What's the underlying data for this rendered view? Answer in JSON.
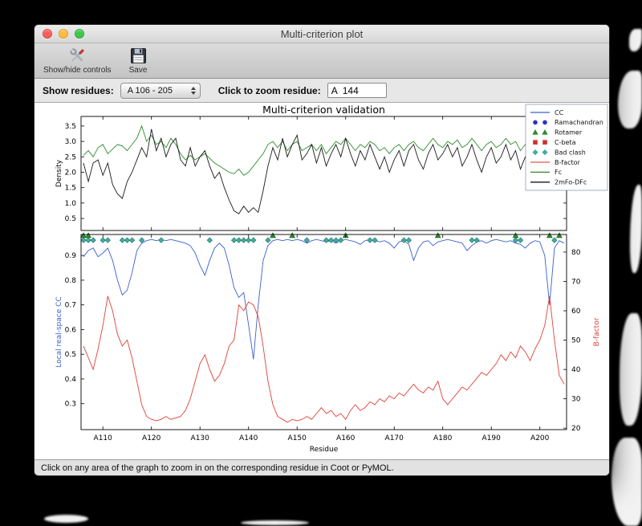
{
  "window": {
    "title": "Multi-criterion plot"
  },
  "toolbar": {
    "show_hide_label": "Show/hide controls",
    "save_label": "Save"
  },
  "controls": {
    "show_residues_label": "Show residues:",
    "residue_range_value": "A 106 - 205",
    "zoom_residue_label": "Click to zoom residue:",
    "zoom_residue_value": "A  144"
  },
  "status": {
    "text": "Click on any area of the graph to zoom in on the corresponding residue in Coot or PyMOL."
  },
  "legend": {
    "entries": [
      {
        "label": "CC",
        "swatch": "line",
        "color": "#3a5fd0"
      },
      {
        "label": "Ramachandran",
        "swatch": "circles",
        "color": "#2633cc"
      },
      {
        "label": "Rotamer",
        "swatch": "triangles",
        "color": "#2e8b2e"
      },
      {
        "label": "C-beta",
        "swatch": "squares",
        "color": "#cc3333"
      },
      {
        "label": "Bad clash",
        "swatch": "diamonds",
        "color": "#3fae9f"
      },
      {
        "label": "B-factor",
        "swatch": "line",
        "color": "#e4574b"
      },
      {
        "label": "Fc",
        "swatch": "line",
        "color": "#2e8b2e"
      },
      {
        "label": "2mFo-DFc",
        "swatch": "line",
        "color": "#1a1a1a"
      }
    ]
  },
  "chart_data": [
    {
      "type": "line",
      "title": "Multi-criterion validation",
      "ylabel": "Density",
      "ylim": [
        0.11,
        3.81
      ],
      "yticks": [
        0.5,
        1.0,
        1.5,
        2.0,
        2.5,
        3.0,
        3.5
      ],
      "x_start": 106,
      "series": [
        {
          "name": "Fc",
          "color": "#2e8b2e",
          "values": [
            2.55,
            2.7,
            2.5,
            2.8,
            2.9,
            2.6,
            2.75,
            2.9,
            2.85,
            2.7,
            2.9,
            3.1,
            3.5,
            3.0,
            3.2,
            2.9,
            3.0,
            2.8,
            3.1,
            2.9,
            2.6,
            2.4,
            2.55,
            2.4,
            2.5,
            2.6,
            2.45,
            2.3,
            2.2,
            2.1,
            2.0,
            1.95,
            2.1,
            1.9,
            2.0,
            2.2,
            2.4,
            2.6,
            2.9,
            3.0,
            2.8,
            3.0,
            2.7,
            2.9,
            3.0,
            2.7,
            2.8,
            2.9,
            2.7,
            2.9,
            2.6,
            2.8,
            3.0,
            2.9,
            3.1,
            2.9,
            2.7,
            2.9,
            2.8,
            3.0,
            2.9,
            2.7,
            2.8,
            2.6,
            2.8,
            2.9,
            2.7,
            2.9,
            3.0,
            2.8,
            2.7,
            2.9,
            3.1,
            2.9,
            2.8,
            3.0,
            2.9,
            3.05,
            2.8,
            2.9,
            3.1,
            2.9,
            2.7,
            2.9,
            3.0,
            2.8,
            2.9,
            3.1,
            2.9,
            3.0,
            2.7,
            2.9,
            2.6,
            2.8,
            2.9,
            2.7,
            2.8,
            3.0,
            2.5,
            2.6
          ]
        },
        {
          "name": "2mFo-DFc",
          "color": "#1a1a1a",
          "values": [
            2.3,
            1.7,
            2.3,
            2.4,
            1.9,
            2.3,
            1.6,
            1.3,
            1.15,
            1.7,
            2.0,
            2.4,
            2.8,
            2.5,
            3.4,
            2.7,
            3.1,
            2.5,
            2.9,
            3.1,
            2.4,
            2.2,
            2.8,
            2.2,
            2.5,
            2.7,
            2.2,
            1.8,
            2.0,
            1.5,
            1.1,
            0.75,
            0.65,
            0.9,
            0.7,
            0.85,
            0.7,
            1.4,
            2.2,
            2.8,
            2.4,
            3.1,
            2.5,
            2.9,
            3.2,
            2.4,
            2.6,
            2.9,
            2.3,
            2.8,
            2.2,
            2.6,
            2.9,
            2.5,
            3.1,
            2.6,
            2.2,
            2.7,
            2.4,
            2.9,
            2.5,
            2.1,
            2.5,
            2.0,
            2.4,
            2.7,
            2.2,
            2.7,
            2.9,
            2.4,
            2.1,
            2.6,
            2.9,
            2.4,
            2.6,
            2.9,
            2.5,
            2.8,
            2.2,
            2.5,
            2.9,
            2.4,
            2.0,
            2.5,
            2.8,
            2.3,
            2.5,
            2.9,
            2.4,
            2.7,
            2.1,
            2.5,
            1.9,
            2.3,
            2.6,
            2.1,
            2.4,
            2.8,
            1.9,
            2.2
          ]
        }
      ]
    },
    {
      "type": "line",
      "xlabel": "Residue",
      "xlim": [
        105.5,
        205.5
      ],
      "xticks": [
        110,
        120,
        130,
        140,
        150,
        160,
        170,
        180,
        190,
        200
      ],
      "xtick_labels": [
        "A110",
        "A120",
        "A130",
        "A140",
        "A150",
        "A160",
        "A170",
        "A180",
        "A190",
        "A200"
      ],
      "x_start": 106,
      "ylabel_left": "Local real-space CC",
      "ylim_left": [
        0.195,
        0.985
      ],
      "yticks_left": [
        0.3,
        0.4,
        0.5,
        0.6,
        0.7,
        0.8,
        0.9
      ],
      "ylabel_right": "B-factor",
      "ylim_right": [
        19.5,
        86.0
      ],
      "yticks_right": [
        20,
        30,
        40,
        50,
        60,
        70,
        80
      ],
      "series": [
        {
          "name": "CC",
          "axis": "left",
          "color": "#3a5fd0",
          "values": [
            0.895,
            0.92,
            0.93,
            0.895,
            0.91,
            0.93,
            0.88,
            0.8,
            0.74,
            0.76,
            0.83,
            0.92,
            0.95,
            0.96,
            0.965,
            0.96,
            0.965,
            0.96,
            0.965,
            0.96,
            0.955,
            0.95,
            0.94,
            0.91,
            0.86,
            0.82,
            0.88,
            0.93,
            0.95,
            0.93,
            0.86,
            0.77,
            0.73,
            0.75,
            0.62,
            0.48,
            0.7,
            0.88,
            0.94,
            0.96,
            0.965,
            0.96,
            0.965,
            0.96,
            0.965,
            0.96,
            0.95,
            0.96,
            0.965,
            0.96,
            0.955,
            0.96,
            0.95,
            0.96,
            0.965,
            0.96,
            0.955,
            0.945,
            0.96,
            0.965,
            0.96,
            0.955,
            0.96,
            0.95,
            0.93,
            0.955,
            0.96,
            0.945,
            0.88,
            0.93,
            0.955,
            0.96,
            0.94,
            0.955,
            0.96,
            0.965,
            0.96,
            0.955,
            0.95,
            0.92,
            0.94,
            0.955,
            0.96,
            0.95,
            0.96,
            0.965,
            0.96,
            0.955,
            0.96,
            0.95,
            0.945,
            0.93,
            0.95,
            0.96,
            0.955,
            0.9,
            0.7,
            0.93,
            0.96,
            0.95
          ]
        },
        {
          "name": "B-factor",
          "axis": "right",
          "color": "#e04038",
          "values": [
            48,
            44,
            40,
            47,
            55,
            65,
            60,
            52,
            48,
            50,
            44,
            36,
            28,
            24,
            23,
            22.5,
            23,
            24,
            23,
            23.5,
            24,
            26,
            30,
            36,
            42,
            45,
            40,
            36,
            38,
            42,
            48,
            50,
            62,
            60,
            63,
            62,
            58,
            48,
            36,
            28,
            24,
            23,
            22,
            23,
            22.5,
            23,
            24,
            23,
            25,
            27,
            25,
            26,
            24,
            25,
            23,
            26,
            28,
            26,
            27,
            29,
            28,
            30,
            29,
            31,
            30,
            32,
            31,
            33,
            35,
            33,
            32,
            34,
            33,
            36,
            30,
            28,
            30,
            32,
            34,
            33,
            35,
            37,
            39,
            38,
            40,
            42,
            45,
            43,
            46,
            44,
            48,
            46,
            43,
            47,
            50,
            55,
            65,
            50,
            38,
            35
          ]
        }
      ],
      "markers": [
        {
          "name": "Bad clash",
          "shape": "diamond",
          "color": "#3fae9f",
          "edge": "#1d6b63",
          "y": 0.962,
          "residues": [
            106,
            107,
            108,
            110,
            111,
            114,
            115,
            116,
            118,
            122,
            132,
            137,
            138,
            139,
            140,
            141,
            144,
            152,
            156,
            157,
            158,
            159,
            165,
            166,
            172,
            173,
            186,
            187,
            195,
            196,
            203
          ]
        },
        {
          "name": "Rotamer",
          "shape": "triangle",
          "color": "#2e8b2e",
          "edge": "#1c5c1c",
          "y": 0.981,
          "residues": [
            106,
            107,
            145,
            149,
            160,
            179,
            195,
            202,
            204
          ]
        }
      ]
    }
  ]
}
